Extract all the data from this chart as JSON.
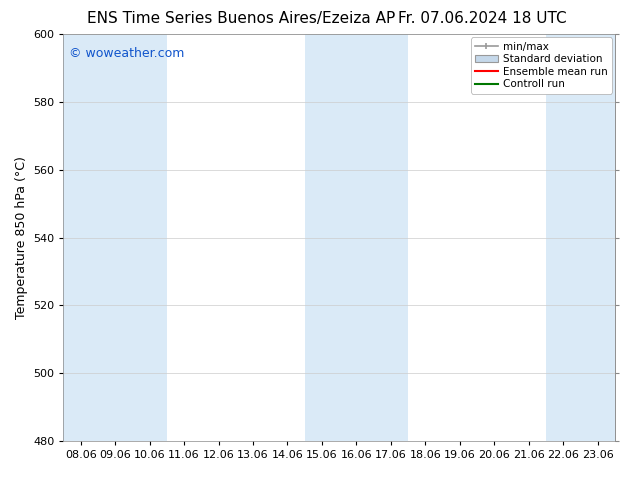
{
  "title_left": "ENS Time Series Buenos Aires/Ezeiza AP",
  "title_right": "Fr. 07.06.2024 18 UTC",
  "ylabel": "Temperature 850 hPa (°C)",
  "watermark": "© woweather.com",
  "watermark_color": "#1155cc",
  "ylim": [
    480,
    600
  ],
  "yticks": [
    480,
    500,
    520,
    540,
    560,
    580,
    600
  ],
  "x_labels": [
    "08.06",
    "09.06",
    "10.06",
    "11.06",
    "12.06",
    "13.06",
    "14.06",
    "15.06",
    "16.06",
    "17.06",
    "18.06",
    "19.06",
    "20.06",
    "21.06",
    "22.06",
    "23.06"
  ],
  "background_color": "#ffffff",
  "plot_bg_color": "#ffffff",
  "shaded_columns": [
    0,
    1,
    2,
    7,
    8,
    9,
    14,
    15
  ],
  "shaded_color": "#daeaf7",
  "legend_labels": [
    "min/max",
    "Standard deviation",
    "Ensemble mean run",
    "Controll run"
  ],
  "legend_colors": [
    "#999999",
    "#b0c4d8",
    "#ff0000",
    "#007700"
  ],
  "title_fontsize": 11,
  "tick_fontsize": 8,
  "ylabel_fontsize": 9,
  "watermark_fontsize": 9
}
